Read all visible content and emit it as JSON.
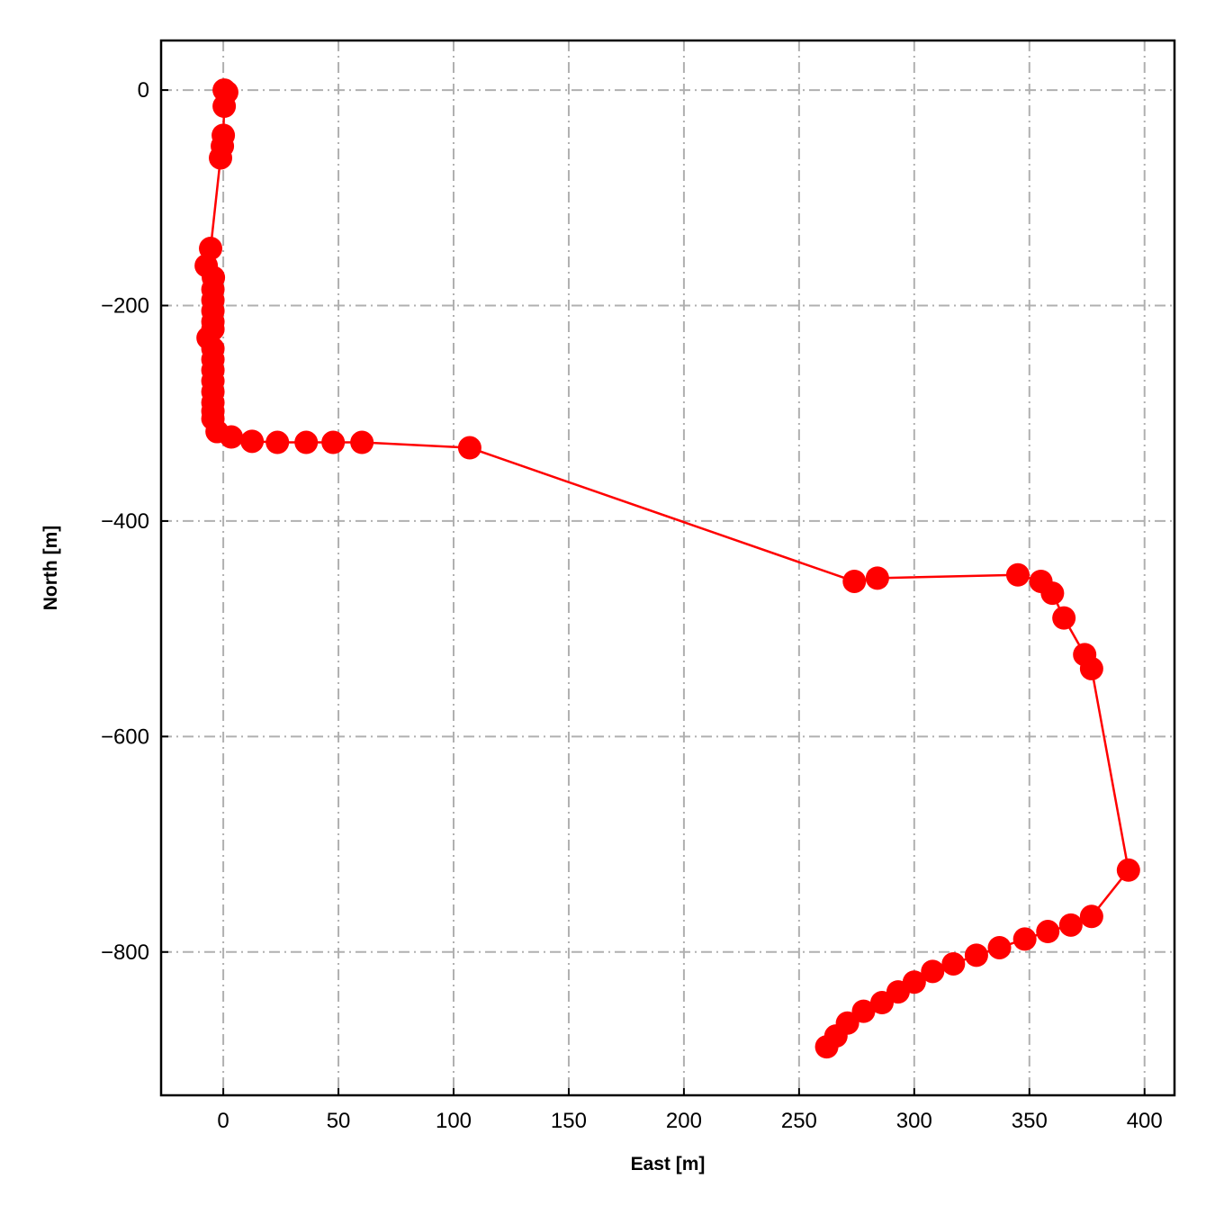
{
  "chart_data": {
    "type": "line",
    "title": "",
    "xlabel": "East [m]",
    "ylabel": "North [m]",
    "xlim": [
      -27,
      413
    ],
    "ylim": [
      -933,
      46
    ],
    "xticks": [
      0,
      50,
      100,
      150,
      200,
      250,
      300,
      350,
      400
    ],
    "yticks": [
      0,
      -200,
      -400,
      -600,
      -800
    ],
    "xtick_labels": [
      "0",
      "50",
      "100",
      "150",
      "200",
      "250",
      "300",
      "350",
      "400"
    ],
    "ytick_labels": [
      "0",
      "−200",
      "−400",
      "−600",
      "−800"
    ],
    "grid": true,
    "grid_style": "dash-dot",
    "colors": {
      "series": "#ff0000",
      "grid": "#b0b0b0"
    },
    "series": [
      {
        "marker": "circle",
        "x": [
          0.4,
          1.5,
          0.4,
          0,
          -0.4,
          -1.2,
          -5.5,
          -7.4,
          -4.3,
          -4.5,
          -4.5,
          -4.5,
          -4.5,
          -4.5,
          -6.6,
          -4.5,
          -4.5,
          -4.5,
          -4.5,
          -4.5,
          -4.5,
          -4.5,
          -4.5,
          -2.7,
          3.5,
          12.5,
          23.5,
          36,
          47.7,
          60.2,
          107,
          274,
          284,
          345,
          355,
          360,
          365,
          374,
          377,
          393,
          377,
          368,
          358,
          348,
          337,
          327,
          317,
          308,
          300,
          293,
          286,
          278,
          271,
          266,
          262
        ],
        "y": [
          0,
          -2,
          -15,
          -42,
          -52,
          -63,
          -147,
          -163,
          -174,
          -185,
          -195,
          -205,
          -215,
          -222,
          -230,
          -240,
          -250,
          -260,
          -270,
          -280,
          -290,
          -298,
          -305,
          -317,
          -322,
          -326,
          -327,
          -327,
          -327,
          -327,
          -332,
          -456,
          -453,
          -450,
          -456,
          -467,
          -490,
          -524,
          -537,
          -724,
          -767,
          -775,
          -781,
          -788,
          -796,
          -803,
          -811,
          -818,
          -828,
          -837,
          -847,
          -855,
          -866,
          -878,
          -888
        ]
      }
    ]
  }
}
